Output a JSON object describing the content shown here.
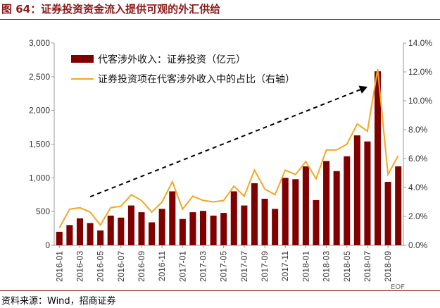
{
  "title": "图 64：证券投资资金流入提供可观的外汇供给",
  "source": "资料来源：Wind，招商证券",
  "watermark": "EOF",
  "colors": {
    "bar": "#800000",
    "line": "#f5a623",
    "arrow": "#000000",
    "brand": "#8b1a1a"
  },
  "chart_data": {
    "type": "bar+line",
    "legend": [
      "代客涉外收入：证券投资（亿元）",
      "证券投资项在代客涉外收入中的占比（右轴）"
    ],
    "legend_position": "top-left",
    "y_left": {
      "min": 0,
      "max": 3000,
      "ticks": [
        "0",
        "500",
        "1,000",
        "1,500",
        "2,000",
        "2,500",
        "3,000"
      ]
    },
    "y_right": {
      "min": 0,
      "max": 14,
      "ticks": [
        "0.0%",
        "2.0%",
        "4.0%",
        "6.0%",
        "8.0%",
        "10.0%",
        "12.0%",
        "14.0%"
      ]
    },
    "x_tick_labels": [
      "2016-01",
      "2016-03",
      "2016-05",
      "2016-07",
      "2016-09",
      "2016-11",
      "2017-01",
      "2017-03",
      "2017-05",
      "2017-07",
      "2017-09",
      "2017-11",
      "2018-01",
      "2018-03",
      "2018-05",
      "2018-07",
      "2018-09"
    ],
    "categories": [
      "2016-01",
      "2016-02",
      "2016-03",
      "2016-04",
      "2016-05",
      "2016-06",
      "2016-07",
      "2016-08",
      "2016-09",
      "2016-10",
      "2016-11",
      "2016-12",
      "2017-01",
      "2017-02",
      "2017-03",
      "2017-04",
      "2017-05",
      "2017-06",
      "2017-07",
      "2017-08",
      "2017-09",
      "2017-10",
      "2017-11",
      "2017-12",
      "2018-01",
      "2018-02",
      "2018-03",
      "2018-04",
      "2018-05",
      "2018-06",
      "2018-07",
      "2018-08",
      "2018-09",
      "2018-10"
    ],
    "series": [
      {
        "name": "代客涉外收入：证券投资（亿元）",
        "type": "bar",
        "axis": "left",
        "values": [
          200,
          300,
          400,
          330,
          220,
          440,
          410,
          590,
          490,
          340,
          540,
          800,
          390,
          490,
          510,
          440,
          480,
          800,
          590,
          920,
          690,
          540,
          1000,
          980,
          1170,
          670,
          1250,
          1100,
          1320,
          1630,
          1540,
          2580,
          940,
          1170
        ]
      },
      {
        "name": "证券投资项在代客涉外收入中的占比（右轴）",
        "type": "line",
        "axis": "right",
        "values": [
          1.2,
          2.5,
          2.6,
          2.3,
          1.4,
          2.6,
          2.7,
          3.5,
          3.1,
          2.3,
          3.0,
          4.4,
          2.5,
          3.4,
          3.1,
          3.0,
          3.1,
          4.1,
          3.4,
          5.2,
          3.9,
          3.5,
          5.2,
          4.9,
          5.8,
          4.6,
          6.6,
          6.6,
          7.0,
          8.4,
          7.9,
          12.2,
          4.9,
          6.2
        ]
      }
    ],
    "annotation": {
      "type": "dashed-arrow",
      "from_category": "2016-04",
      "from_value_left": 720,
      "to_category": "2018-07",
      "to_value_left": 2350
    }
  }
}
